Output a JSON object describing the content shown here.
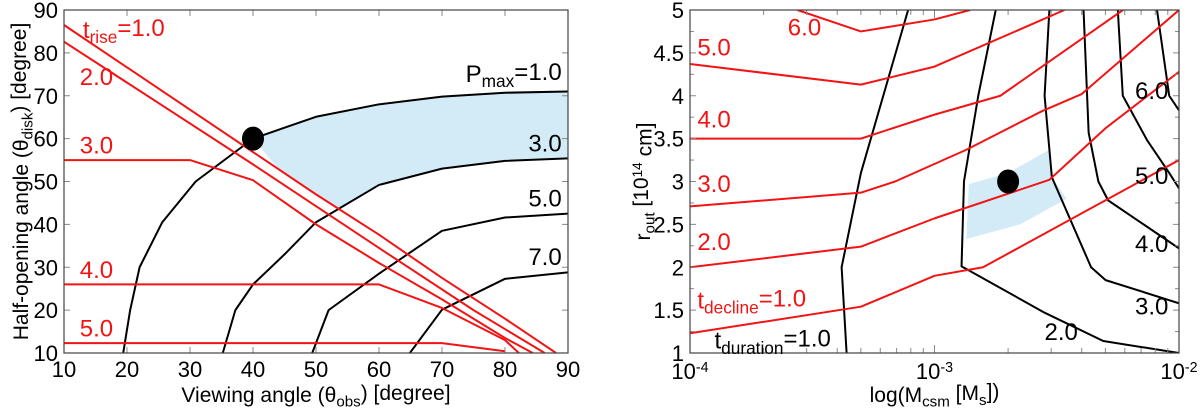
{
  "colors": {
    "red_contour": "#f21414",
    "black_contour": "#000000",
    "shade": "#d3ebf6",
    "marker": "#000000"
  },
  "chart_data": [
    {
      "type": "line",
      "xlim": [
        10,
        90
      ],
      "ylim": [
        10,
        90
      ],
      "xticks": [
        10,
        20,
        30,
        40,
        50,
        60,
        70,
        80,
        90
      ],
      "yticks": [
        10,
        20,
        30,
        40,
        50,
        60,
        70,
        80,
        90
      ],
      "xlabel": [
        {
          "t": "Viewing angle (θ"
        },
        {
          "t": "obs",
          "sub": true
        },
        {
          "t": ") [degree]"
        }
      ],
      "ylabel": [
        {
          "t": "Half-opening angle (θ"
        },
        {
          "t": "disk",
          "sub": true
        },
        {
          "t": ") [degree]"
        }
      ],
      "red_series": [
        {
          "label": [
            {
              "t": "t"
            },
            {
              "t": "rise",
              "sub": true
            },
            {
              "t": "=1.0"
            }
          ],
          "points": [
            [
              10,
              86.5
            ],
            [
              50,
              47
            ],
            [
              60,
              37.6
            ],
            [
              70,
              27.5
            ],
            [
              80,
              18
            ],
            [
              88.1,
              10
            ]
          ]
        },
        {
          "label": [
            {
              "t": "2.0"
            }
          ],
          "points": [
            [
              10,
              82.6
            ],
            [
              40,
              54
            ],
            [
              60,
              34.5
            ],
            [
              75,
              20
            ],
            [
              86.3,
              10
            ]
          ]
        },
        {
          "label": [
            {
              "t": "3.0"
            }
          ],
          "points": [
            [
              10,
              55
            ],
            [
              30,
              55
            ],
            [
              40,
              50.3
            ],
            [
              50,
              40
            ],
            [
              60,
              31
            ],
            [
              70,
              22.5
            ],
            [
              80,
              13.5
            ],
            [
              84.4,
              10
            ]
          ]
        },
        {
          "label": [
            {
              "t": "4.0"
            }
          ],
          "points": [
            [
              10,
              26
            ],
            [
              60,
              26
            ],
            [
              70,
              20.5
            ],
            [
              80,
              13
            ],
            [
              82.2,
              10
            ]
          ]
        },
        {
          "label": [
            {
              "t": "5.0"
            }
          ],
          "points": [
            [
              10,
              12.3
            ],
            [
              70,
              12.3
            ],
            [
              80,
              10.4
            ]
          ]
        }
      ],
      "black_series": [
        {
          "label": [
            {
              "t": "P"
            },
            {
              "t": "max",
              "sub": true
            },
            {
              "t": "=1.0"
            }
          ],
          "points": [
            [
              19.4,
              10
            ],
            [
              20.5,
              20
            ],
            [
              22,
              30
            ],
            [
              25.6,
              40.5
            ],
            [
              30.9,
              50
            ],
            [
              40,
              60
            ],
            [
              50,
              65.1
            ],
            [
              60,
              68
            ],
            [
              70,
              69.8
            ],
            [
              80,
              70.7
            ],
            [
              90,
              71
            ]
          ]
        },
        {
          "label": [
            {
              "t": "3.0"
            }
          ],
          "points": [
            [
              35.2,
              10
            ],
            [
              37.2,
              20
            ],
            [
              40,
              26
            ],
            [
              45,
              33
            ],
            [
              50,
              40.5
            ],
            [
              60,
              49.2
            ],
            [
              70,
              53
            ],
            [
              80,
              54.8
            ],
            [
              90,
              55.4
            ]
          ]
        },
        {
          "label": [
            {
              "t": "5.0"
            }
          ],
          "points": [
            [
              49.4,
              10
            ],
            [
              52,
              20
            ],
            [
              60,
              28.5
            ],
            [
              70,
              38.5
            ],
            [
              80,
              41.6
            ],
            [
              90,
              42.5
            ]
          ]
        },
        {
          "label": [
            {
              "t": "7.0"
            }
          ],
          "points": [
            [
              64.9,
              10
            ],
            [
              70,
              20.1
            ],
            [
              80,
              27.3
            ],
            [
              90,
              28.8
            ]
          ]
        }
      ],
      "shaded_region": [
        [
          40,
          60
        ],
        [
          50,
          65.1
        ],
        [
          60,
          68
        ],
        [
          70,
          69.8
        ],
        [
          80,
          70.7
        ],
        [
          90,
          71
        ],
        [
          90,
          55.4
        ],
        [
          80,
          54.8
        ],
        [
          70,
          53
        ],
        [
          60,
          49.2
        ],
        [
          53.5,
          43.5
        ],
        [
          50,
          47
        ],
        [
          44,
          53
        ]
      ],
      "marker": [
        40,
        60
      ]
    },
    {
      "type": "line",
      "xscale": "log",
      "xlim": [
        0.0001,
        0.01
      ],
      "ylim": [
        1,
        5
      ],
      "xticks": [
        {
          "base": "10",
          "exp": "-4"
        },
        {
          "base": "10",
          "exp": "-3"
        },
        {
          "base": "10",
          "exp": "-2"
        }
      ],
      "yticks": [
        "1",
        "1.5",
        "2",
        "2.5",
        "3",
        "3.5",
        "4",
        "4.5",
        "5"
      ],
      "xlabel": [
        {
          "t": "log(M"
        },
        {
          "t": "csm",
          "sub": true
        },
        {
          "t": " [M"
        },
        {
          "t": "s",
          "sub": true
        },
        {
          "t": "])"
        }
      ],
      "ylabel": [
        {
          "t": "r"
        },
        {
          "t": "out",
          "sub": true
        },
        {
          "t": " [10"
        },
        {
          "t": "14",
          "sup": true
        },
        {
          "t": " cm]"
        }
      ],
      "red_series": [
        {
          "label": [
            {
              "t": "t"
            },
            {
              "t": "decline",
              "sub": true
            },
            {
              "t": "=1.0"
            }
          ],
          "points": [
            [
              0.0001,
              1.23
            ],
            [
              0.0005,
              1.54
            ],
            [
              0.001,
              1.9
            ],
            [
              0.00158,
              2.0
            ],
            [
              0.01,
              3.25
            ]
          ]
        },
        {
          "label": [
            {
              "t": "2.0"
            }
          ],
          "points": [
            [
              0.0001,
              2.0
            ],
            [
              0.0005,
              2.24
            ],
            [
              0.001,
              2.57
            ],
            [
              0.00295,
              3.02
            ],
            [
              0.005,
              3.62
            ],
            [
              0.01,
              4.28
            ]
          ]
        },
        {
          "label": [
            {
              "t": "3.0"
            }
          ],
          "points": [
            [
              0.0001,
              2.71
            ],
            [
              0.0005,
              2.87
            ],
            [
              0.00069,
              3.0
            ],
            [
              0.00135,
              3.37
            ],
            [
              0.00275,
              3.82
            ],
            [
              0.004,
              4.02
            ],
            [
              0.01,
              5
            ]
          ]
        },
        {
          "label": [
            {
              "t": "4.0"
            }
          ],
          "points": [
            [
              0.0001,
              3.5
            ],
            [
              0.0005,
              3.5
            ],
            [
              0.001,
              3.78
            ],
            [
              0.00186,
              4.0
            ],
            [
              0.0059,
              5
            ]
          ]
        },
        {
          "label": [
            {
              "t": "5.0"
            }
          ],
          "points": [
            [
              0.0001,
              4.37
            ],
            [
              0.0005,
              4.13
            ],
            [
              0.001,
              4.34
            ],
            [
              0.0034,
              5
            ]
          ]
        },
        {
          "label": [
            {
              "t": "6.0"
            }
          ],
          "points": [
            [
              0.000275,
              5
            ],
            [
              0.0005,
              4.75
            ],
            [
              0.001,
              4.89
            ],
            [
              0.0014,
              5
            ]
          ]
        }
      ],
      "black_series": [
        {
          "label": [
            {
              "t": "t"
            },
            {
              "t": "duration",
              "sub": true
            },
            {
              "t": "=1.0"
            }
          ],
          "points": [
            [
              0.000437,
              1
            ],
            [
              0.000417,
              2.0
            ],
            [
              0.0005,
              3.1
            ],
            [
              0.00078,
              5
            ]
          ]
        },
        {
          "label": [
            {
              "t": "2.0"
            }
          ],
          "points": [
            [
              0.00178,
              5
            ],
            [
              0.00151,
              4.0
            ],
            [
              0.00132,
              3.0
            ],
            [
              0.00129,
              2.01
            ],
            [
              0.00135,
              1.98
            ],
            [
              0.00282,
              1.47
            ],
            [
              0.0049,
              1.14
            ],
            [
              0.01,
              1
            ]
          ]
        },
        {
          "label": [
            {
              "t": "3.0"
            }
          ],
          "points": [
            [
              0.00295,
              5
            ],
            [
              0.00282,
              4.0
            ],
            [
              0.00302,
              3.05
            ],
            [
              0.00437,
              2.0
            ],
            [
              0.00501,
              1.85
            ],
            [
              0.01,
              1.58
            ]
          ]
        },
        {
          "label": [
            {
              "t": "4.0"
            }
          ],
          "points": [
            [
              0.00407,
              5
            ],
            [
              0.00427,
              3.57
            ],
            [
              0.00468,
              3.0
            ],
            [
              0.00513,
              2.78
            ],
            [
              0.01,
              2.22
            ]
          ]
        },
        {
          "label": [
            {
              "t": "5.0"
            }
          ],
          "points": [
            [
              0.00562,
              5
            ],
            [
              0.00589,
              4.0
            ],
            [
              0.00741,
              3.48
            ],
            [
              0.00912,
              3.1
            ],
            [
              0.01,
              2.92
            ]
          ]
        },
        {
          "label": [
            {
              "t": "6.0"
            }
          ],
          "points": [
            [
              0.00813,
              5
            ],
            [
              0.00912,
              4.0
            ],
            [
              0.01,
              3.83
            ]
          ]
        }
      ],
      "shaded_region": [
        [
          0.00138,
          2.97
        ],
        [
          0.002,
          3.1
        ],
        [
          0.00295,
          3.37
        ],
        [
          0.00302,
          3.05
        ],
        [
          0.00347,
          2.8
        ],
        [
          0.00224,
          2.5
        ],
        [
          0.00135,
          2.33
        ]
      ],
      "marker": [
        0.002,
        3.0
      ]
    }
  ]
}
